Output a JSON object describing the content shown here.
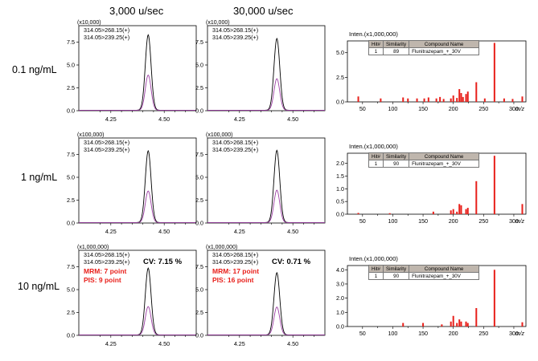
{
  "columns": [
    "3,000 u/sec",
    "30,000 u/sec"
  ],
  "rows": [
    {
      "label": "0.1 ng/mL",
      "scale": "(x10,000)",
      "yticks": [
        "0.0",
        "2.5",
        "5.0",
        "7.5"
      ],
      "ymax": 9.3,
      "peaks": [
        8.25,
        3.85
      ],
      "peaks_fast": [
        7.85,
        3.45
      ],
      "cv": null,
      "spectrum": {
        "inten_label": "Inten.(x1,000,000)",
        "yticks": [
          "0.0",
          "2.5",
          "5.0"
        ],
        "ymax": 6.2,
        "hit": "1",
        "similarity": "89",
        "compound": "Flunitrazepam_+_30V",
        "bars": [
          [
            43,
            0.55
          ],
          [
            80,
            0.35
          ],
          [
            117,
            0.45
          ],
          [
            125,
            0.35
          ],
          [
            140,
            0.35
          ],
          [
            152,
            0.35
          ],
          [
            159,
            0.45
          ],
          [
            172,
            0.35
          ],
          [
            178,
            0.5
          ],
          [
            184,
            0.3
          ],
          [
            196,
            0.35
          ],
          [
            200,
            0.65
          ],
          [
            206,
            0.4
          ],
          [
            210,
            1.3
          ],
          [
            213,
            0.9
          ],
          [
            216,
            0.5
          ],
          [
            221,
            0.8
          ],
          [
            224,
            1.05
          ],
          [
            238,
            2.0
          ],
          [
            252,
            0.35
          ],
          [
            268,
            6.0
          ],
          [
            284,
            0.35
          ],
          [
            298,
            0.3
          ],
          [
            314,
            0.55
          ]
        ]
      }
    },
    {
      "label": "1 ng/mL",
      "scale": "(x100,000)",
      "yticks": [
        "0.0",
        "2.5",
        "5.0",
        "7.5"
      ],
      "ymax": 9.3,
      "peaks": [
        7.85,
        3.45
      ],
      "peaks_fast": [
        7.9,
        3.55
      ],
      "cv": null,
      "spectrum": {
        "inten_label": "Inten.(x1,000,000)",
        "yticks": [
          "0.0",
          "0.5",
          "1.0",
          "1.5",
          "2.0"
        ],
        "ymax": 2.4,
        "hit": "1",
        "similarity": "90",
        "compound": "Flunitrazepam_+_30V",
        "bars": [
          [
            43,
            0.05
          ],
          [
            95,
            0.04
          ],
          [
            167,
            0.1
          ],
          [
            196,
            0.15
          ],
          [
            200,
            0.2
          ],
          [
            206,
            0.1
          ],
          [
            210,
            0.4
          ],
          [
            213,
            0.35
          ],
          [
            221,
            0.2
          ],
          [
            224,
            0.25
          ],
          [
            238,
            1.3
          ],
          [
            268,
            2.3
          ],
          [
            314,
            0.4
          ]
        ]
      }
    },
    {
      "label": "10 ng/mL",
      "scale": "(x1,000,000)",
      "yticks": [
        "0.0",
        "2.5",
        "5.0",
        "7.5"
      ],
      "ymax": 9.3,
      "peaks": [
        7.3,
        3.1
      ],
      "peaks_fast": [
        6.8,
        3.05
      ],
      "cv": "CV: 7.15 %",
      "cv_fast": "CV: 0.71 %",
      "mrm": "MRM: 7 point",
      "pis": "PIS: 9 point",
      "mrm_fast": "MRM: 17 point",
      "pis_fast": "PIS: 16 point",
      "spectrum": {
        "inten_label": "Inten.(x1,000,000)",
        "yticks": [
          "0.0",
          "1.0",
          "2.0",
          "3.0",
          "4.0"
        ],
        "ymax": 4.3,
        "hit": "1",
        "similarity": "90",
        "compound": "Flunitrazepam_+_30V",
        "bars": [
          [
            117,
            0.25
          ],
          [
            150,
            0.25
          ],
          [
            181,
            0.15
          ],
          [
            196,
            0.35
          ],
          [
            200,
            0.75
          ],
          [
            206,
            0.25
          ],
          [
            210,
            0.5
          ],
          [
            213,
            0.35
          ],
          [
            221,
            0.35
          ],
          [
            224,
            0.25
          ],
          [
            238,
            1.3
          ],
          [
            268,
            4.0
          ],
          [
            314,
            0.3
          ]
        ]
      }
    }
  ],
  "chrom_legend": [
    "314.05>268.15(+)",
    "314.05>239.25(+)"
  ],
  "chrom_xticks": [
    "4.25",
    "4.50"
  ],
  "spec_xticks": [
    "50",
    "100",
    "150",
    "200",
    "250",
    "300"
  ],
  "spec_xunit": "m/z",
  "table_headers": [
    "Hit#",
    "Similarity",
    "Compound Name"
  ],
  "colors": {
    "trace1": "#000000",
    "trace2": "#9b3fa3",
    "bars": "#e8201b",
    "red_text": "#e8201b"
  }
}
